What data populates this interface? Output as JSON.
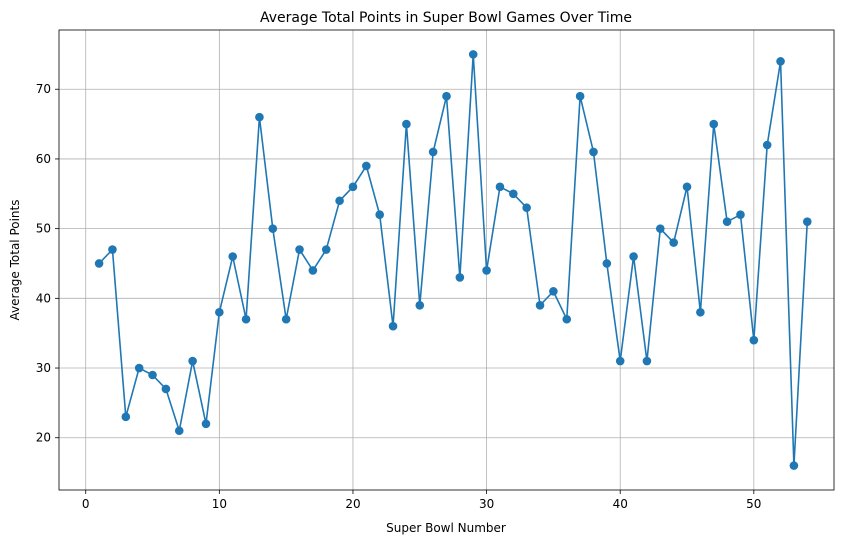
{
  "chart_data": {
    "type": "line",
    "title": "Average Total Points in Super Bowl Games Over Time",
    "xlabel": "Super Bowl Number",
    "ylabel": "Average Total Points",
    "xlim": [
      -2,
      56
    ],
    "ylim": [
      12.5,
      78.5
    ],
    "xticks": [
      0,
      10,
      20,
      30,
      40,
      50
    ],
    "yticks": [
      20,
      30,
      40,
      50,
      60,
      70
    ],
    "grid": true,
    "marker": "circle",
    "color": "#1f77b4",
    "x": [
      1,
      2,
      3,
      4,
      5,
      6,
      7,
      8,
      9,
      10,
      11,
      12,
      13,
      14,
      15,
      16,
      17,
      18,
      19,
      20,
      21,
      22,
      23,
      24,
      25,
      26,
      27,
      28,
      29,
      30,
      31,
      32,
      33,
      34,
      35,
      36,
      37,
      38,
      39,
      40,
      41,
      42,
      43,
      44,
      45,
      46,
      47,
      48,
      49,
      50,
      51,
      52,
      53,
      54
    ],
    "values": [
      45,
      47,
      23,
      30,
      29,
      27,
      21,
      31,
      22,
      38,
      46,
      37,
      66,
      50,
      37,
      47,
      44,
      47,
      54,
      56,
      59,
      52,
      36,
      65,
      39,
      61,
      69,
      43,
      75,
      44,
      56,
      55,
      53,
      39,
      41,
      37,
      69,
      61,
      45,
      31,
      46,
      31,
      50,
      48,
      56,
      38,
      65,
      51,
      52,
      34,
      62,
      74,
      16,
      51
    ]
  }
}
